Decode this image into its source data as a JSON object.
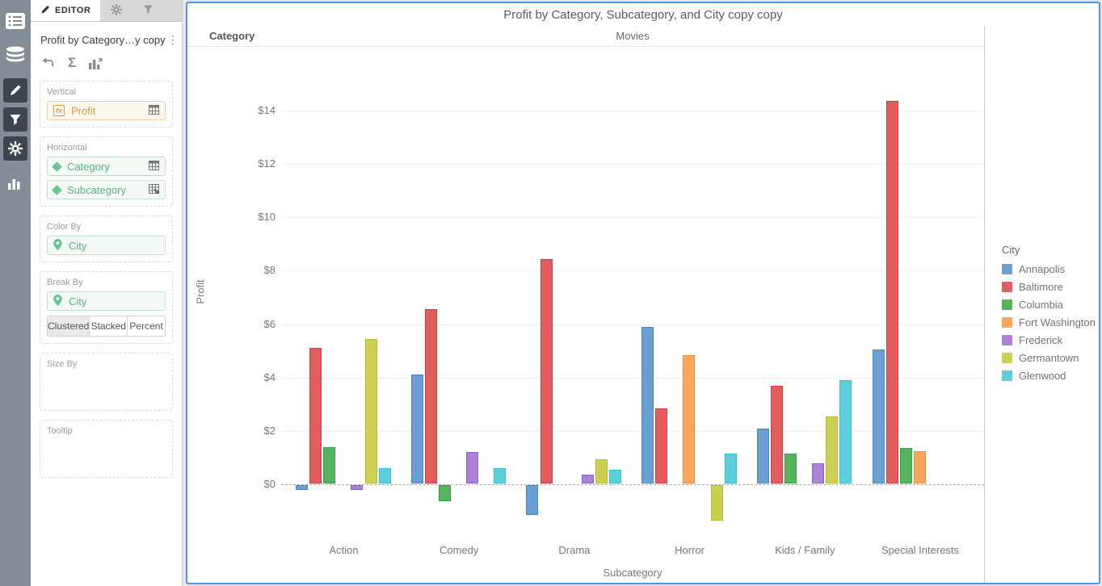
{
  "sidebar": {
    "icons": [
      "list-icon",
      "datasource-icon",
      "pencil-icon",
      "filter-icon",
      "settings-icon",
      "barchart-icon"
    ]
  },
  "editor": {
    "tab_label": "EDITOR",
    "tab_icons": [
      "pencil-icon",
      "gear-icon",
      "funnel-icon"
    ],
    "title": "Profit by Category…y copy",
    "kebab": "⋮",
    "toolbar_icons": [
      "swap-axes-icon",
      "sigma-icon",
      "chart-clear-icon"
    ],
    "sigma_glyph": "Σ",
    "fx_label": "fx",
    "sections": {
      "vertical": {
        "label": "Vertical",
        "field": "Profit"
      },
      "horizontal": {
        "label": "Horizontal",
        "fields": [
          "Category",
          "Subcategory"
        ]
      },
      "color_by": {
        "label": "Color By",
        "field": "City"
      },
      "break_by": {
        "label": "Break By",
        "field": "City",
        "modes": [
          "Clustered",
          "Stacked",
          "Percent"
        ],
        "selected_mode": "Clustered"
      },
      "size_by": {
        "label": "Size By"
      },
      "tooltip": {
        "label": "Tooltip"
      }
    }
  },
  "chart": {
    "title": "Profit by Category, Subcategory, and City copy copy",
    "category_header_label": "Category",
    "category_value": "Movies",
    "legend_title": "City",
    "accent_border_color": "#4f94e5"
  },
  "chart_data": {
    "type": "bar",
    "title": "Profit by Category, Subcategory, and City copy copy",
    "xlabel": "Subcategory",
    "ylabel": "Profit",
    "categories": [
      "Action",
      "Comedy",
      "Drama",
      "Horror",
      "Kids / Family",
      "Special Interests"
    ],
    "series": [
      {
        "name": "Annapolis",
        "color": "#6b9fd3",
        "border": "#4588c2",
        "values": [
          -0.2,
          4.1,
          -1.15,
          5.9,
          2.1,
          5.05
        ]
      },
      {
        "name": "Baltimore",
        "color": "#e25d5d",
        "border": "#d43c3c",
        "values": [
          5.1,
          6.55,
          8.45,
          2.85,
          3.7,
          14.35
        ]
      },
      {
        "name": "Columbia",
        "color": "#56b45e",
        "border": "#3b9e47",
        "values": [
          1.4,
          -0.65,
          null,
          null,
          1.15,
          1.35
        ]
      },
      {
        "name": "Fort Washington",
        "color": "#fba55d",
        "border": "#f28a33",
        "values": [
          null,
          null,
          null,
          4.85,
          null,
          1.25
        ]
      },
      {
        "name": "Frederick",
        "color": "#ab82d6",
        "border": "#9263c7",
        "values": [
          -0.2,
          1.2,
          0.35,
          null,
          0.8,
          null
        ]
      },
      {
        "name": "Germantown",
        "color": "#cdcf53",
        "border": "#b9bc2e",
        "values": [
          5.45,
          null,
          0.95,
          -1.35,
          2.55,
          null
        ]
      },
      {
        "name": "Glenwood",
        "color": "#5bd0db",
        "border": "#35c0d2",
        "values": [
          0.6,
          0.6,
          0.55,
          1.15,
          3.9,
          null
        ]
      }
    ],
    "y_ticks": [
      "$0",
      "$2",
      "$4",
      "$6",
      "$8",
      "$10",
      "$12",
      "$14"
    ],
    "y_tick_values": [
      0,
      2,
      4,
      6,
      8,
      10,
      12,
      14
    ],
    "ylim": [
      -2,
      15.3
    ],
    "grid": "horizontal",
    "zero_line": "dashed",
    "legend_position": "right",
    "bar_mode": "clustered"
  }
}
